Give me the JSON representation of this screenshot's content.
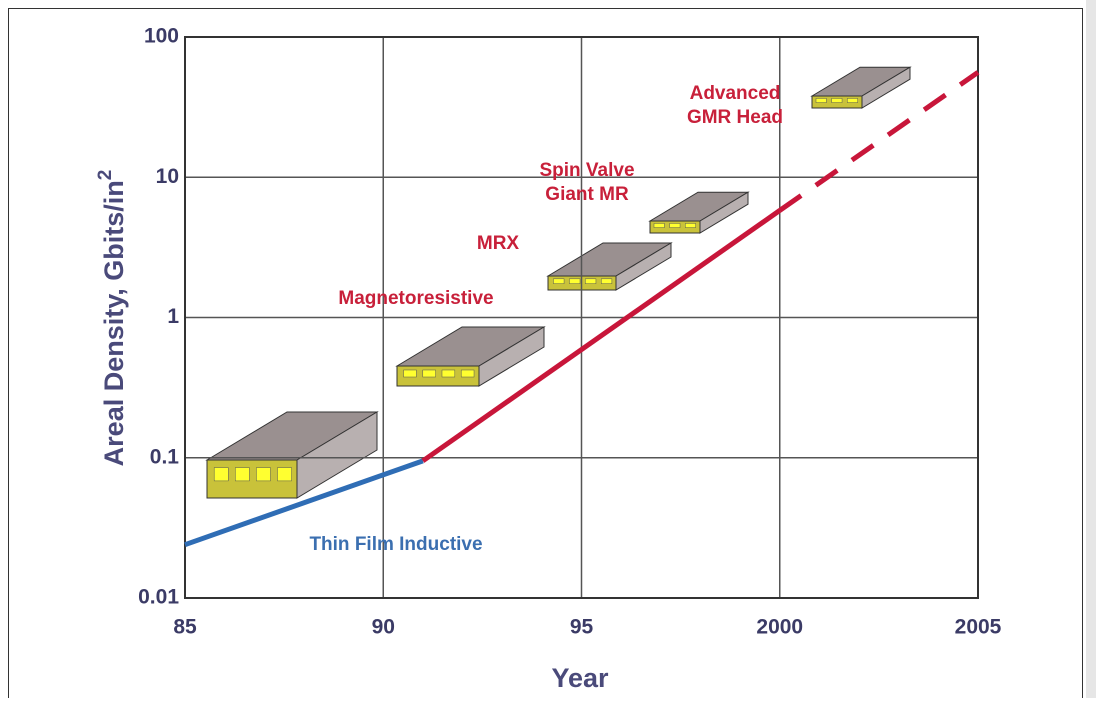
{
  "chart_data": {
    "type": "line",
    "xlabel": "Year",
    "ylabel": "Areal Density,  Gbits/in",
    "ylabel_sup": "2",
    "log_y": true,
    "grid": true,
    "xlim": [
      1985,
      2005
    ],
    "xticks": [
      {
        "value": 1985,
        "label": "85"
      },
      {
        "value": 1990,
        "label": "90"
      },
      {
        "value": 1995,
        "label": "95"
      },
      2000,
      2005
    ],
    "ylim": [
      0.01,
      100
    ],
    "yticks": [
      0.01,
      0.1,
      1,
      10,
      100
    ],
    "series": [
      {
        "color": "#2f6db5",
        "dashed": false,
        "x": [
          1985,
          1991
        ],
        "values": [
          0.024,
          0.095
        ]
      },
      {
        "color": "#c8163a",
        "dashed": false,
        "x": [
          1991,
          2000
        ],
        "values": [
          0.095,
          5.8
        ]
      },
      {
        "color": "#c8163a",
        "dashed": true,
        "x": [
          2000,
          2005
        ],
        "values": [
          5.8,
          56
        ]
      }
    ],
    "annotations": [
      {
        "lines": [
          "Thin Film Inductive"
        ],
        "color": "#3b6fb0"
      },
      {
        "lines": [
          "Magnetoresistive"
        ],
        "color": "#c8203a"
      },
      {
        "lines": [
          "MRX"
        ],
        "color": "#c8203a"
      },
      {
        "lines": [
          "Spin Valve",
          "Giant MR"
        ],
        "color": "#c8203a"
      },
      {
        "lines": [
          "Advanced",
          "GMR Head"
        ],
        "color": "#c8203a"
      }
    ]
  }
}
